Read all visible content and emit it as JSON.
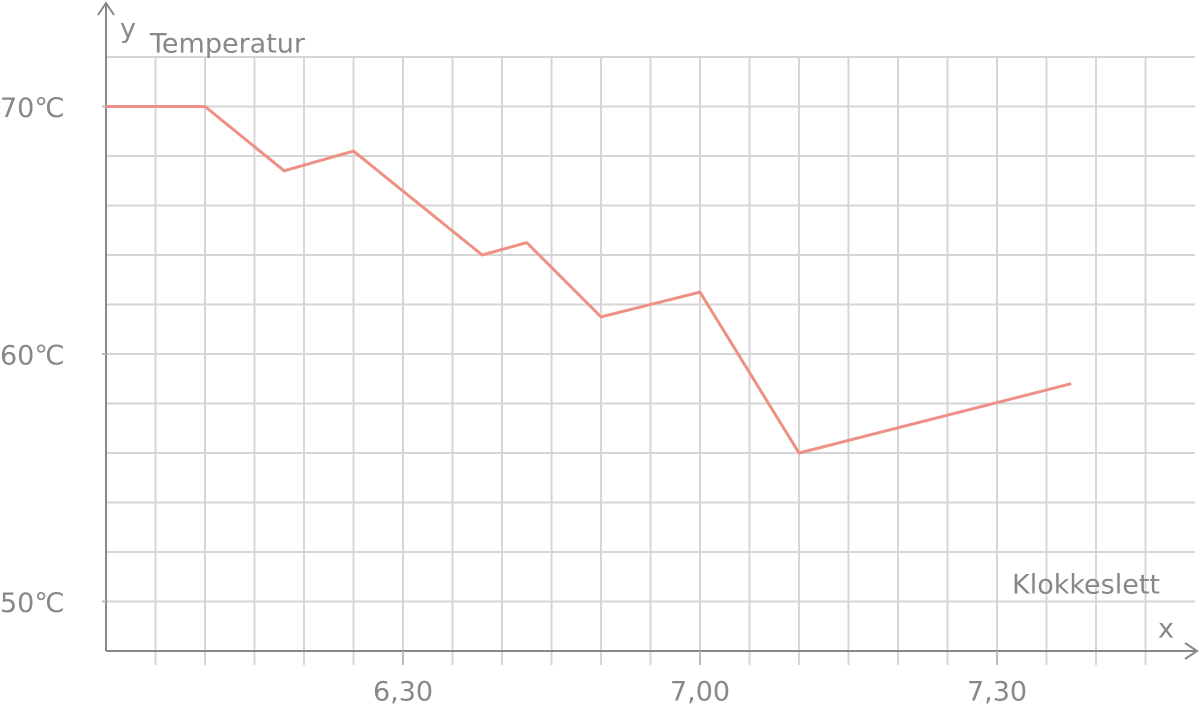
{
  "chart_data": {
    "type": "line",
    "y_label_letter": "y",
    "y_label": "Temperatur",
    "x_label_letter": "x",
    "x_label": "Klokkeslett",
    "x": [
      360,
      370,
      378,
      385,
      398,
      402.5,
      410,
      420,
      430,
      457.5
    ],
    "values": [
      70,
      70,
      67.4,
      68.2,
      64,
      64.5,
      61.5,
      62.5,
      56,
      58.8
    ],
    "color": "#ef9084",
    "xlim": [
      360,
      470
    ],
    "ylim": [
      48,
      74
    ],
    "xticks": [
      {
        "value": 390,
        "label": "6,30"
      },
      {
        "value": 420,
        "label": "7,00"
      },
      {
        "value": 450,
        "label": "7,30"
      }
    ],
    "yticks": [
      {
        "value": 50,
        "label": "50℃"
      },
      {
        "value": 60,
        "label": "60℃"
      },
      {
        "value": 70,
        "label": "70℃"
      }
    ],
    "xgrid": [
      365,
      370,
      375,
      380,
      385,
      390,
      395,
      400,
      405,
      410,
      415,
      420,
      425,
      430,
      435,
      440,
      445,
      450,
      455,
      460,
      465
    ],
    "ygrid": [
      50,
      52,
      54,
      56,
      58,
      60,
      62,
      64,
      66,
      68,
      70,
      72
    ],
    "grid": true
  }
}
